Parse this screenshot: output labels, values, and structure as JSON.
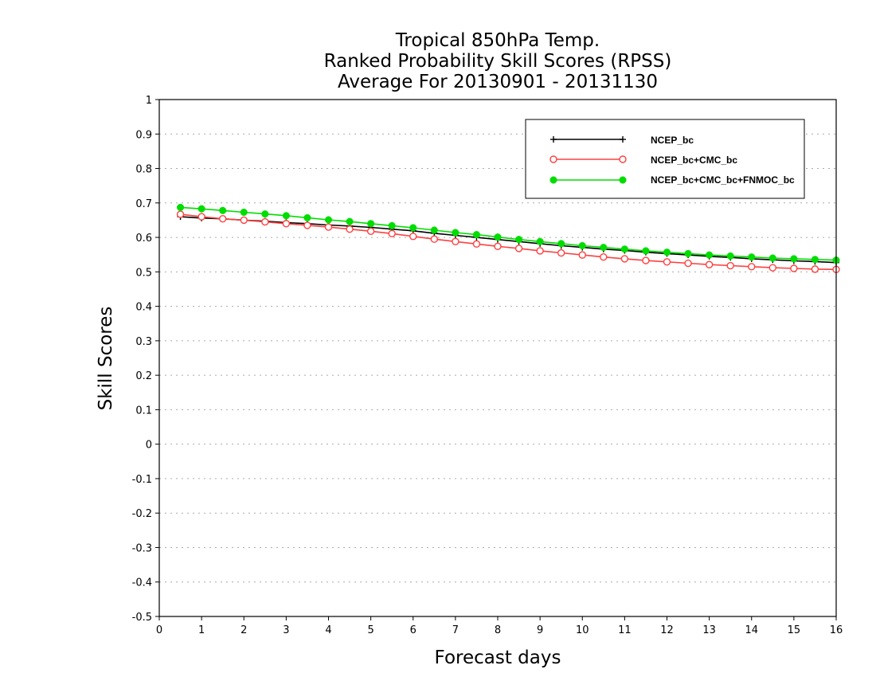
{
  "chart_data": {
    "type": "line",
    "title": [
      "Tropical 850hPa Temp.",
      "Ranked Probability Skill Scores (RPSS)",
      "Average For 20130901 - 20131130"
    ],
    "xlabel": "Forecast days",
    "ylabel": "Skill Scores",
    "xlim": [
      0,
      16
    ],
    "ylim": [
      -0.5,
      1
    ],
    "xticks": [
      "0",
      "1",
      "2",
      "3",
      "4",
      "5",
      "6",
      "7",
      "8",
      "9",
      "10",
      "11",
      "12",
      "13",
      "14",
      "15",
      "16"
    ],
    "yticks": [
      "1",
      "0.9",
      "0.8",
      "0.7",
      "0.6",
      "0.5",
      "0.4",
      "0.3",
      "0.2",
      "0.1",
      "0",
      "-0.1",
      "-0.2",
      "-0.3",
      "-0.4",
      "-0.5"
    ],
    "grid": true,
    "legend_position": "top-right",
    "x": [
      0.5,
      1,
      1.5,
      2,
      2.5,
      3,
      3.5,
      4,
      4.5,
      5,
      5.5,
      6,
      6.5,
      7,
      7.5,
      8,
      8.5,
      9,
      9.5,
      10,
      10.5,
      11,
      11.5,
      12,
      12.5,
      13,
      13.5,
      14,
      14.5,
      15,
      15.5,
      16
    ],
    "series": [
      {
        "name": "NCEP_bc",
        "color": "#000000",
        "marker": "plus",
        "values": [
          0.66,
          0.656,
          0.654,
          0.65,
          0.647,
          0.643,
          0.64,
          0.636,
          0.633,
          0.629,
          0.624,
          0.619,
          0.612,
          0.606,
          0.6,
          0.594,
          0.588,
          0.582,
          0.576,
          0.571,
          0.566,
          0.562,
          0.557,
          0.553,
          0.549,
          0.545,
          0.542,
          0.538,
          0.535,
          0.532,
          0.53,
          0.527
        ]
      },
      {
        "name": "NCEP_bc+CMC_bc",
        "color": "#ff4040",
        "marker": "open-circle",
        "values": [
          0.667,
          0.66,
          0.654,
          0.65,
          0.645,
          0.64,
          0.635,
          0.63,
          0.624,
          0.618,
          0.611,
          0.603,
          0.595,
          0.588,
          0.581,
          0.574,
          0.568,
          0.561,
          0.555,
          0.549,
          0.543,
          0.538,
          0.533,
          0.529,
          0.525,
          0.521,
          0.518,
          0.515,
          0.512,
          0.51,
          0.508,
          0.507
        ]
      },
      {
        "name": "NCEP_bc+CMC_bc+FNMOC_bc",
        "color": "#00dd00",
        "marker": "filled-circle",
        "values": [
          0.687,
          0.683,
          0.678,
          0.673,
          0.668,
          0.663,
          0.657,
          0.651,
          0.646,
          0.64,
          0.634,
          0.628,
          0.621,
          0.614,
          0.608,
          0.601,
          0.594,
          0.588,
          0.582,
          0.576,
          0.571,
          0.566,
          0.561,
          0.557,
          0.553,
          0.549,
          0.546,
          0.543,
          0.54,
          0.538,
          0.536,
          0.534
        ]
      }
    ]
  }
}
